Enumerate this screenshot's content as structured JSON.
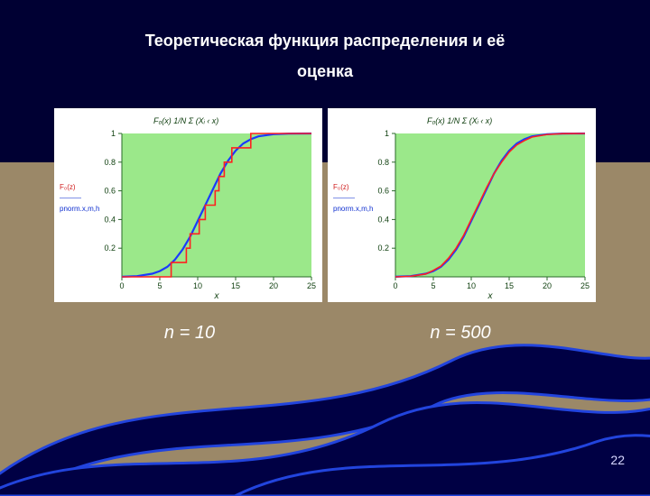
{
  "background_color": "#000033",
  "band_color": "#9b8868",
  "title_line1": "Теоретическая функция распределения и её",
  "title_line2": "оценка",
  "title_color": "#ffffff",
  "title_fontsize": 18,
  "page_number": "22",
  "captions": {
    "left": "n = 10",
    "right": "n = 500",
    "color": "#ffffff",
    "fontsize": 20
  },
  "wave": {
    "stroke": "#2244dd",
    "fill": "#000044"
  },
  "charts": {
    "panel_bg": "#ffffff",
    "plot_bg": "#9be88a",
    "xlim": [
      0,
      25
    ],
    "ylim": [
      0,
      1
    ],
    "xticks": [
      0,
      5,
      10,
      15,
      20,
      25
    ],
    "yticks": [
      0.2,
      0.4,
      0.6,
      0.8,
      1
    ],
    "tick_fontsize": 9,
    "tick_color": "#104010",
    "x_label": "x",
    "formula_color": "#0a3a0a",
    "axis_line_color": "#2a6a2a",
    "left_legend_lines": [
      "F₀(z)",
      "—",
      "pnorm.x,m,h"
    ],
    "theoretical": {
      "type": "line",
      "color": "#1a3aff",
      "width": 2.2,
      "points": [
        [
          0,
          0.001
        ],
        [
          2,
          0.005
        ],
        [
          4,
          0.022
        ],
        [
          5,
          0.04
        ],
        [
          6,
          0.07
        ],
        [
          7,
          0.12
        ],
        [
          8,
          0.19
        ],
        [
          9,
          0.28
        ],
        [
          10,
          0.39
        ],
        [
          11,
          0.5
        ],
        [
          12,
          0.61
        ],
        [
          13,
          0.72
        ],
        [
          14,
          0.81
        ],
        [
          15,
          0.88
        ],
        [
          16,
          0.93
        ],
        [
          17,
          0.96
        ],
        [
          18,
          0.98
        ],
        [
          20,
          0.995
        ],
        [
          22,
          0.999
        ],
        [
          25,
          1
        ]
      ]
    },
    "empirical_n10": {
      "type": "step",
      "color": "#ff2020",
      "width": 1.6,
      "steps": [
        [
          0,
          0
        ],
        [
          6.5,
          0
        ],
        [
          6.5,
          0.1
        ],
        [
          8.5,
          0.1
        ],
        [
          8.5,
          0.2
        ],
        [
          9.0,
          0.2
        ],
        [
          9.0,
          0.3
        ],
        [
          10.2,
          0.3
        ],
        [
          10.2,
          0.4
        ],
        [
          11.0,
          0.4
        ],
        [
          11.0,
          0.5
        ],
        [
          12.3,
          0.5
        ],
        [
          12.3,
          0.6
        ],
        [
          12.8,
          0.6
        ],
        [
          12.8,
          0.7
        ],
        [
          13.5,
          0.7
        ],
        [
          13.5,
          0.8
        ],
        [
          14.5,
          0.8
        ],
        [
          14.5,
          0.9
        ],
        [
          17.0,
          0.9
        ],
        [
          17.0,
          1.0
        ],
        [
          25,
          1.0
        ]
      ]
    },
    "empirical_n500": {
      "type": "line",
      "color": "#ff2020",
      "width": 1.6,
      "points": [
        [
          0,
          0.0
        ],
        [
          2,
          0.004
        ],
        [
          4,
          0.02
        ],
        [
          5,
          0.045
        ],
        [
          6,
          0.075
        ],
        [
          7,
          0.13
        ],
        [
          8,
          0.2
        ],
        [
          9,
          0.29
        ],
        [
          10,
          0.4
        ],
        [
          11,
          0.51
        ],
        [
          12,
          0.62
        ],
        [
          13,
          0.72
        ],
        [
          14,
          0.8
        ],
        [
          15,
          0.87
        ],
        [
          16,
          0.92
        ],
        [
          17,
          0.95
        ],
        [
          18,
          0.975
        ],
        [
          20,
          0.993
        ],
        [
          22,
          0.999
        ],
        [
          25,
          1
        ]
      ]
    }
  }
}
